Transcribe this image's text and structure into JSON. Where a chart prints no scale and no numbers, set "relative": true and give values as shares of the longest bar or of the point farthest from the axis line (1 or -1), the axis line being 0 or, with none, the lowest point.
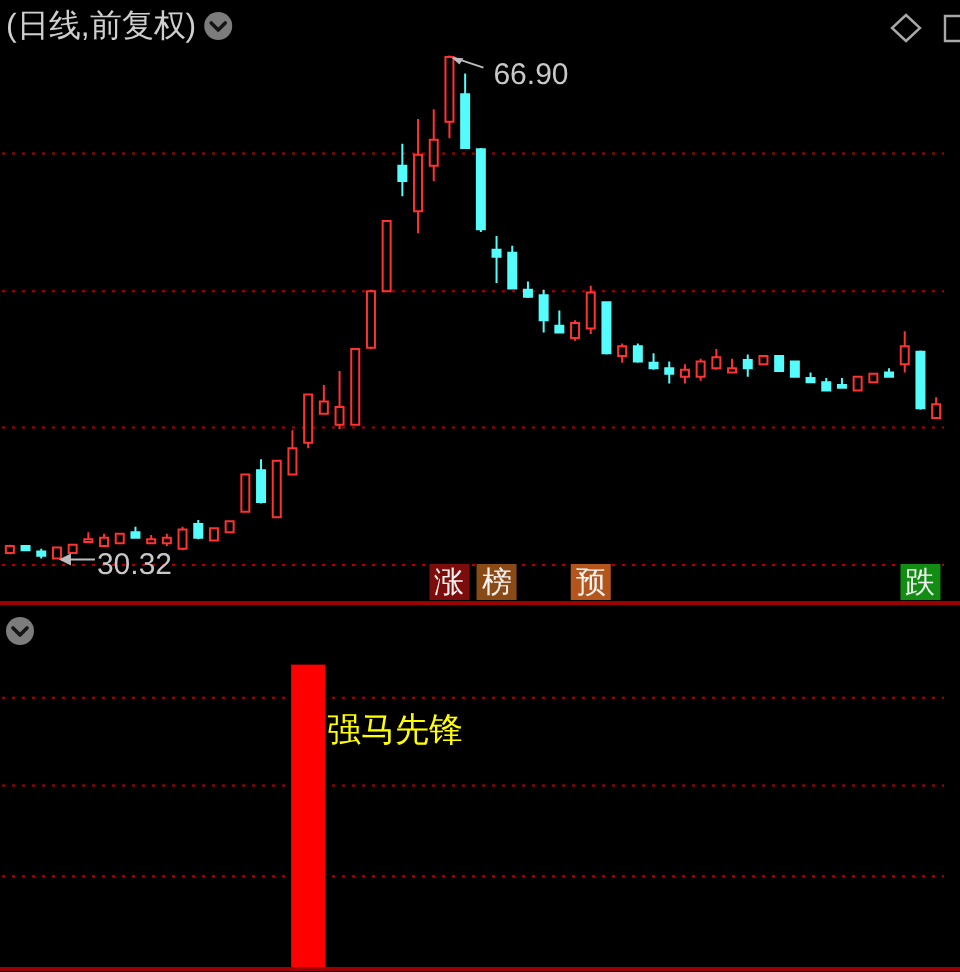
{
  "chart_data": [
    {
      "type": "candlestick",
      "title": "(日线,前复权)",
      "categories": [
        null,
        null,
        null,
        null,
        null,
        null,
        null,
        null,
        null,
        null,
        null,
        null,
        null,
        null,
        null,
        null,
        null,
        null,
        null,
        null,
        null,
        null,
        null,
        null,
        null,
        null,
        null,
        null,
        null,
        null,
        null,
        null,
        null,
        null,
        null,
        null,
        null,
        null,
        null,
        null,
        null,
        null,
        null,
        null,
        null,
        null,
        null,
        null,
        null,
        null,
        null,
        null,
        null,
        null,
        null,
        null,
        null,
        null,
        null,
        null
      ],
      "ohlc": [
        [
          30.8,
          31.4,
          30.7,
          31.3
        ],
        [
          31.3,
          31.3,
          31.0,
          31.0
        ],
        [
          30.9,
          31.1,
          30.4,
          30.6
        ],
        [
          30.4,
          31.2,
          30.32,
          31.2
        ],
        [
          30.8,
          31.4,
          30.8,
          31.4
        ],
        [
          31.6,
          32.3,
          31.5,
          31.8
        ],
        [
          31.3,
          32.2,
          31.3,
          31.9
        ],
        [
          31.5,
          32.2,
          31.5,
          32.2
        ],
        [
          32.3,
          32.7,
          31.9,
          31.9
        ],
        [
          31.5,
          32.1,
          31.5,
          31.8
        ],
        [
          31.5,
          32.2,
          31.3,
          31.9
        ],
        [
          31.1,
          32.7,
          31.0,
          32.5
        ],
        [
          32.9,
          33.2,
          31.8,
          31.9
        ],
        [
          31.7,
          32.6,
          31.7,
          32.6
        ],
        [
          32.3,
          33.1,
          32.3,
          33.1
        ],
        [
          33.8,
          36.5,
          33.8,
          36.5
        ],
        [
          36.8,
          37.6,
          34.4,
          34.5
        ],
        [
          33.4,
          37.5,
          33.4,
          37.5
        ],
        [
          36.5,
          39.7,
          36.5,
          38.4
        ],
        [
          38.8,
          42.3,
          38.4,
          42.3
        ],
        [
          40.9,
          43.0,
          40.9,
          41.8
        ],
        [
          40.1,
          44.0,
          39.8,
          41.4
        ],
        [
          40.1,
          45.6,
          40.1,
          45.6
        ],
        [
          45.7,
          49.9,
          45.6,
          49.8
        ],
        [
          49.8,
          54.9,
          49.8,
          54.9
        ],
        [
          58.9,
          60.5,
          56.7,
          57.8
        ],
        [
          55.6,
          62.3,
          54.0,
          59.7
        ],
        [
          58.9,
          63.0,
          57.8,
          60.8
        ],
        [
          62.1,
          66.9,
          60.9,
          66.8
        ],
        [
          64.1,
          65.6,
          60.2,
          60.2
        ],
        [
          60.1,
          60.2,
          54.1,
          54.3
        ],
        [
          52.8,
          53.8,
          50.4,
          52.3
        ],
        [
          52.6,
          53.1,
          50.0,
          50.0
        ],
        [
          49.9,
          50.5,
          49.3,
          49.4
        ],
        [
          49.5,
          49.9,
          46.8,
          47.7
        ],
        [
          47.3,
          48.4,
          46.8,
          46.8
        ],
        [
          46.4,
          47.7,
          46.2,
          47.5
        ],
        [
          47.1,
          50.2,
          46.7,
          49.7
        ],
        [
          49.0,
          49.0,
          45.2,
          45.3
        ],
        [
          45.1,
          46.0,
          44.6,
          45.8
        ],
        [
          45.8,
          46.0,
          44.6,
          44.7
        ],
        [
          44.6,
          45.3,
          44.1,
          44.2
        ],
        [
          44.2,
          44.7,
          43.1,
          43.8
        ],
        [
          43.6,
          44.5,
          43.1,
          44.1
        ],
        [
          43.6,
          44.9,
          43.3,
          44.7
        ],
        [
          44.2,
          45.6,
          44.1,
          45.0
        ],
        [
          43.9,
          44.9,
          43.9,
          44.2
        ],
        [
          44.8,
          45.2,
          43.6,
          44.2
        ],
        [
          44.5,
          45.1,
          44.5,
          45.1
        ],
        [
          45.1,
          45.1,
          44.0,
          44.0
        ],
        [
          44.7,
          44.7,
          43.6,
          43.6
        ],
        [
          43.5,
          43.9,
          43.2,
          43.2
        ],
        [
          43.2,
          43.5,
          42.6,
          42.6
        ],
        [
          43.0,
          43.5,
          42.8,
          42.8
        ],
        [
          42.6,
          43.6,
          42.6,
          43.6
        ],
        [
          43.2,
          43.8,
          43.2,
          43.8
        ],
        [
          43.9,
          44.2,
          43.6,
          43.6
        ],
        [
          44.5,
          46.9,
          43.9,
          45.8
        ],
        [
          45.4,
          45.5,
          41.2,
          41.3
        ],
        [
          40.6,
          42.1,
          40.6,
          41.6
        ]
      ],
      "colors": [
        "#ff3232",
        "#54fcfc",
        "#54fcfc",
        "#ff3232",
        "#ff3232",
        "#ff3232",
        "#ff3232",
        "#ff3232",
        "#54fcfc",
        "#ff3232",
        "#ff3232",
        "#ff3232",
        "#54fcfc",
        "#ff3232",
        "#ff3232",
        "#ff3232",
        "#54fcfc",
        "#ff3232",
        "#ff3232",
        "#ff3232",
        "#ff3232",
        "#ff3232",
        "#ff3232",
        "#ff3232",
        "#ff3232",
        "#54fcfc",
        "#ff3232",
        "#ff3232",
        "#ff3232",
        "#54fcfc",
        "#54fcfc",
        "#54fcfc",
        "#54fcfc",
        "#54fcfc",
        "#54fcfc",
        "#54fcfc",
        "#ff3232",
        "#ff3232",
        "#54fcfc",
        "#ff3232",
        "#54fcfc",
        "#54fcfc",
        "#54fcfc",
        "#ff3232",
        "#ff3232",
        "#ff3232",
        "#ff3232",
        "#54fcfc",
        "#ff3232",
        "#54fcfc",
        "#54fcfc",
        "#54fcfc",
        "#54fcfc",
        "#54fcfc",
        "#ff3232",
        "#ff3232",
        "#54fcfc",
        "#ff3232",
        "#54fcfc",
        "#ff3232"
      ],
      "ref_lines": [
        {
          "axis": "y",
          "value": 59.8,
          "color": "#b00000",
          "line_style": "dotted"
        },
        {
          "axis": "y",
          "value": 49.8,
          "color": "#b00000",
          "line_style": "dotted"
        },
        {
          "axis": "y",
          "value": 39.9,
          "color": "#b00000",
          "line_style": "dotted"
        }
      ],
      "annotations": [
        "66.90",
        "30.32",
        "涨",
        "榜",
        "预",
        "跌"
      ]
    },
    {
      "type": "bar",
      "relative": true,
      "categories": [
        null,
        null,
        null,
        null,
        null,
        null,
        null,
        null,
        null,
        null,
        null,
        null,
        null,
        null,
        null,
        null,
        null,
        null,
        null,
        null,
        null,
        null,
        null,
        null,
        null,
        null,
        null,
        null,
        null,
        null,
        null,
        null,
        null,
        null,
        null,
        null,
        null,
        null,
        null,
        null,
        null,
        null,
        null,
        null,
        null,
        null,
        null,
        null,
        null,
        null,
        null,
        null,
        null,
        null,
        null,
        null,
        null,
        null,
        null,
        null
      ],
      "series": [
        {
          "name": "强马先锋",
          "color": "#ff0000",
          "values": [
            null,
            null,
            null,
            null,
            null,
            null,
            null,
            null,
            null,
            null,
            null,
            null,
            null,
            null,
            null,
            null,
            null,
            null,
            null,
            1,
            null,
            null,
            null,
            null,
            null,
            null,
            null,
            null,
            null,
            null,
            null,
            null,
            null,
            null,
            null,
            null,
            null,
            null,
            null,
            null,
            null,
            null,
            null,
            null,
            null,
            null,
            null,
            null,
            null,
            null,
            null,
            null,
            null,
            null,
            null,
            null,
            null,
            null,
            null,
            null
          ]
        }
      ],
      "ref_lines": [
        {
          "axis": "y",
          "value": 0.89,
          "color": "#b00000",
          "line_style": "dotted"
        },
        {
          "axis": "y",
          "value": 0.6,
          "color": "#b00000",
          "line_style": "dotted"
        },
        {
          "axis": "y",
          "value": 0.3,
          "color": "#b00000",
          "line_style": "dotted"
        }
      ]
    }
  ]
}
